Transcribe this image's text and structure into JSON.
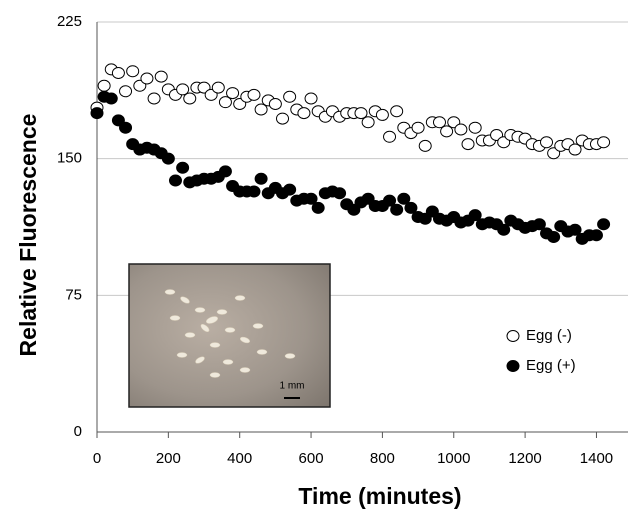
{
  "chart_data": {
    "type": "scatter",
    "x_label": "Time (minutes)",
    "y_label": "Relative Fluorescence",
    "x": [
      0,
      20,
      40,
      60,
      80,
      100,
      120,
      140,
      160,
      180,
      200,
      220,
      240,
      260,
      280,
      300,
      320,
      340,
      360,
      380,
      400,
      420,
      440,
      460,
      480,
      500,
      520,
      540,
      560,
      580,
      600,
      620,
      640,
      660,
      680,
      700,
      720,
      740,
      760,
      780,
      800,
      820,
      840,
      860,
      880,
      900,
      920,
      940,
      960,
      980,
      1000,
      1020,
      1040,
      1060,
      1080,
      1100,
      1120,
      1140,
      1160,
      1180,
      1200,
      1220,
      1240,
      1260,
      1280,
      1300,
      1320,
      1340,
      1360,
      1380,
      1400,
      1420
    ],
    "series": [
      {
        "name": "Egg (-)",
        "color": "#000000",
        "filled": false,
        "values": [
          178,
          190,
          199,
          197,
          187,
          198,
          190,
          194,
          183,
          195,
          188,
          185,
          188,
          183,
          189,
          189,
          185,
          189,
          181,
          186,
          180,
          184,
          185,
          177,
          182,
          180,
          172,
          184,
          177,
          175,
          183,
          176,
          173,
          176,
          173,
          175,
          175,
          175,
          170,
          176,
          174,
          162,
          176,
          167,
          164,
          167,
          157,
          170,
          170,
          165,
          170,
          166,
          158,
          167,
          160,
          160,
          163,
          159,
          163,
          162,
          161,
          158,
          157,
          159,
          153,
          157,
          158,
          155,
          160,
          158,
          158,
          159
        ]
      },
      {
        "name": "Egg (+)",
        "color": "#000000",
        "filled": true,
        "values": [
          175,
          184,
          183,
          171,
          167,
          158,
          155,
          156,
          155,
          153,
          150,
          138,
          145,
          137,
          138,
          139,
          139,
          140,
          143,
          135,
          132,
          132,
          132,
          139,
          131,
          134,
          131,
          133,
          127,
          128,
          128,
          123,
          131,
          132,
          131,
          125,
          122,
          126,
          128,
          124,
          124,
          127,
          122,
          128,
          123,
          118,
          117,
          121,
          117,
          116,
          118,
          115,
          116,
          119,
          114,
          115,
          114,
          111,
          116,
          114,
          112,
          113,
          114,
          109,
          107,
          113,
          110,
          111,
          106,
          108,
          108,
          114
        ]
      }
    ],
    "xlim": [
      0,
      1480
    ],
    "xticks": [
      0,
      200,
      400,
      600,
      800,
      1000,
      1200,
      1400
    ],
    "ylim": [
      0,
      225
    ],
    "yticks": [
      0,
      75,
      150,
      225
    ],
    "grid": true,
    "annotations": [
      "1 mm"
    ]
  }
}
